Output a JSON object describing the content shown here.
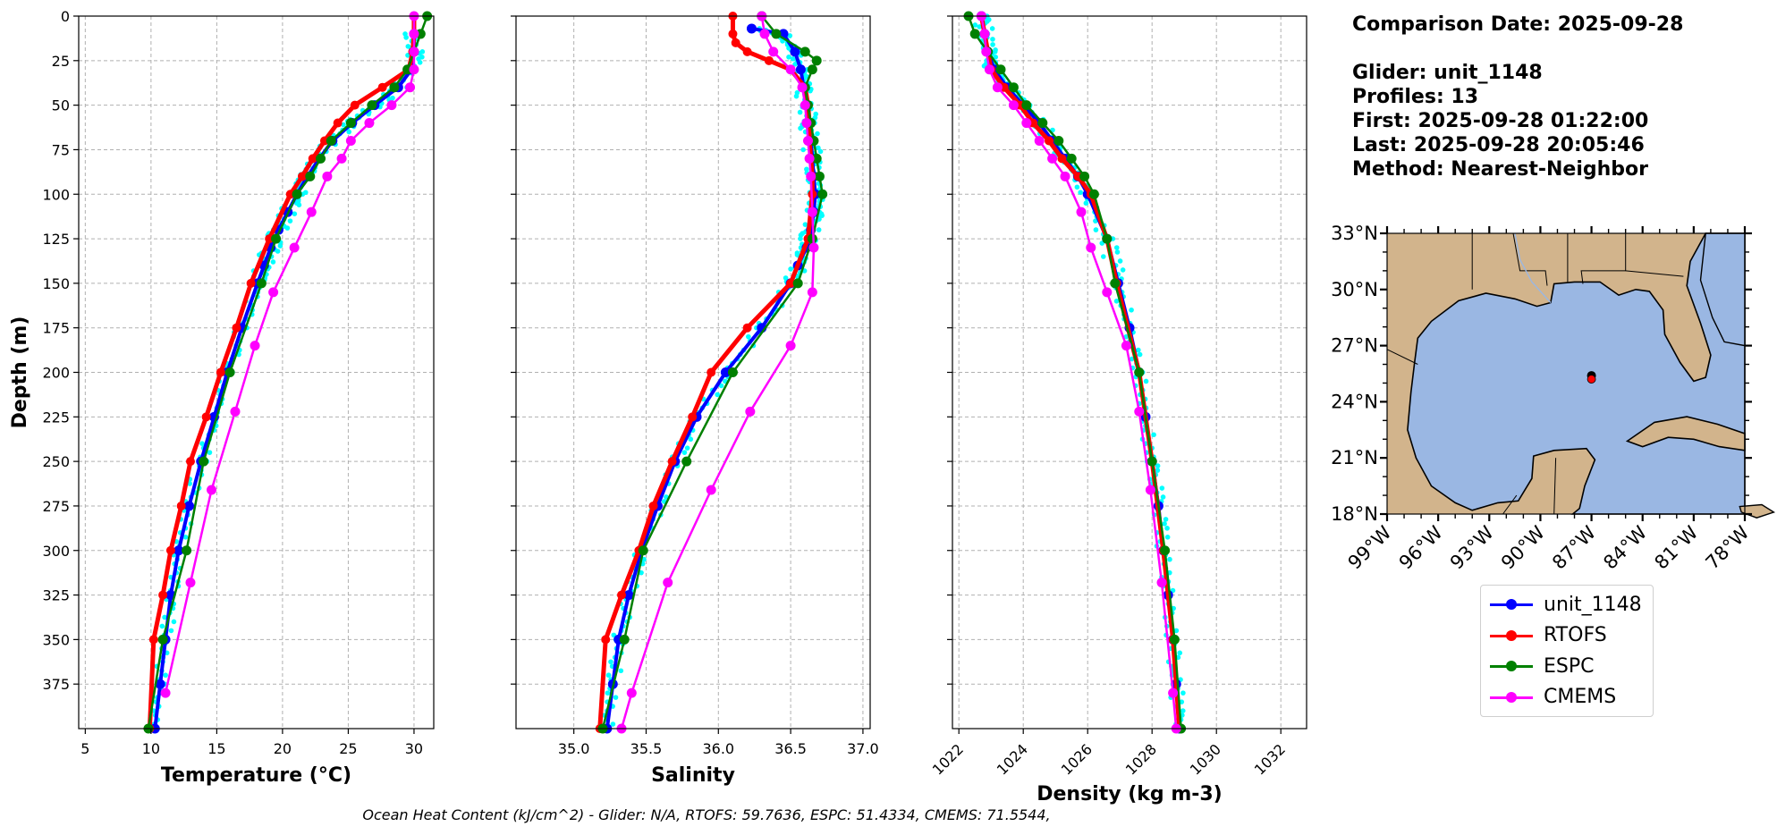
{
  "chart_data": [
    {
      "type": "line",
      "panel": "temperature",
      "xlabel": "Temperature (°C)",
      "ylabel": "Depth (m)",
      "xlim": [
        4.5,
        31.5
      ],
      "ylim": [
        400,
        0
      ],
      "xticks": [
        5,
        10,
        15,
        20,
        25,
        30
      ],
      "yticks": [
        0,
        25,
        50,
        75,
        100,
        125,
        150,
        175,
        200,
        225,
        250,
        275,
        300,
        325,
        350,
        375
      ],
      "grid": true,
      "scatter_points_color": "#00ffff",
      "series": [
        {
          "name": "unit_1148",
          "color": "#0000ff",
          "depth": [
            10,
            20,
            30,
            40,
            50,
            60,
            70,
            80,
            90,
            100,
            110,
            120,
            130,
            140,
            150,
            175,
            200,
            225,
            250,
            275,
            300,
            325,
            350,
            375,
            400
          ],
          "values": [
            30.0,
            30.0,
            29.8,
            28.8,
            27.0,
            25.3,
            23.8,
            22.8,
            21.9,
            21.1,
            20.4,
            19.7,
            19.1,
            18.6,
            18.1,
            16.9,
            15.8,
            14.8,
            13.8,
            12.9,
            12.1,
            11.5,
            11.1,
            10.7,
            10.3
          ]
        },
        {
          "name": "RTOFS",
          "color": "#ff0000",
          "depth": [
            0,
            10,
            20,
            30,
            40,
            50,
            60,
            70,
            80,
            90,
            100,
            125,
            150,
            175,
            200,
            225,
            250,
            275,
            300,
            325,
            350,
            400
          ],
          "values": [
            30.0,
            30.0,
            29.9,
            29.6,
            27.6,
            25.5,
            24.2,
            23.2,
            22.3,
            21.5,
            20.6,
            19.0,
            17.6,
            16.5,
            15.3,
            14.2,
            13.0,
            12.3,
            11.5,
            10.9,
            10.2,
            9.9
          ]
        },
        {
          "name": "ESPC",
          "color": "#008000",
          "depth": [
            0,
            10,
            20,
            30,
            40,
            50,
            60,
            70,
            80,
            90,
            100,
            125,
            150,
            200,
            250,
            300,
            350,
            400
          ],
          "values": [
            31.0,
            30.5,
            30.0,
            29.5,
            28.5,
            26.8,
            25.2,
            23.7,
            22.9,
            22.1,
            21.1,
            19.5,
            18.4,
            16.0,
            14.0,
            12.7,
            10.9,
            9.8
          ]
        },
        {
          "name": "CMEMS",
          "color": "#ff00ff",
          "depth": [
            0,
            10,
            20,
            30,
            40,
            50,
            60,
            70,
            80,
            90,
            110,
            130,
            155,
            185,
            222,
            266,
            318,
            380
          ],
          "values": [
            30.0,
            30.0,
            30.0,
            30.0,
            29.7,
            28.3,
            26.6,
            25.2,
            24.5,
            23.4,
            22.2,
            20.9,
            19.3,
            17.9,
            16.4,
            14.6,
            13.0,
            11.1
          ]
        }
      ]
    },
    {
      "type": "line",
      "panel": "salinity",
      "xlabel": "Salinity",
      "xlim": [
        34.6,
        37.05
      ],
      "ylim": [
        400,
        0
      ],
      "xticks": [
        "35.0",
        "35.5",
        "36.0",
        "36.5",
        "37.0"
      ],
      "grid": true,
      "series": [
        {
          "name": "unit_1148",
          "color": "#0000ff",
          "depth": [
            7,
            10,
            20,
            30,
            40,
            50,
            60,
            70,
            80,
            90,
            100,
            110,
            120,
            130,
            140,
            150,
            175,
            200,
            225,
            250,
            275,
            300,
            325,
            350,
            375,
            400
          ],
          "values": [
            36.23,
            36.45,
            36.53,
            36.57,
            36.59,
            36.61,
            36.62,
            36.64,
            36.65,
            36.66,
            36.67,
            36.66,
            36.64,
            36.61,
            36.55,
            36.5,
            36.3,
            36.05,
            35.85,
            35.7,
            35.58,
            35.47,
            35.38,
            35.31,
            35.27,
            35.23
          ]
        },
        {
          "name": "RTOFS",
          "color": "#ff0000",
          "depth": [
            0,
            10,
            15,
            20,
            25,
            30,
            40,
            50,
            60,
            70,
            80,
            90,
            100,
            125,
            150,
            175,
            200,
            225,
            250,
            275,
            300,
            325,
            350,
            400
          ],
          "values": [
            36.1,
            36.1,
            36.12,
            36.2,
            36.35,
            36.5,
            36.6,
            36.62,
            36.63,
            36.63,
            36.64,
            36.65,
            36.65,
            36.62,
            36.5,
            36.2,
            35.95,
            35.82,
            35.68,
            35.55,
            35.45,
            35.33,
            35.22,
            35.18
          ]
        },
        {
          "name": "ESPC",
          "color": "#008000",
          "depth": [
            0,
            10,
            20,
            25,
            30,
            40,
            50,
            60,
            70,
            80,
            90,
            100,
            125,
            150,
            200,
            250,
            300,
            350,
            400
          ],
          "values": [
            36.3,
            36.4,
            36.6,
            36.68,
            36.65,
            36.6,
            36.62,
            36.64,
            36.66,
            36.68,
            36.7,
            36.72,
            36.65,
            36.55,
            36.1,
            35.78,
            35.48,
            35.35,
            35.2
          ]
        },
        {
          "name": "CMEMS",
          "color": "#ff00ff",
          "depth": [
            0,
            10,
            20,
            30,
            40,
            50,
            60,
            70,
            80,
            90,
            110,
            130,
            155,
            185,
            222,
            266,
            318,
            380,
            400
          ],
          "values": [
            36.3,
            36.32,
            36.38,
            36.5,
            36.58,
            36.6,
            36.61,
            36.62,
            36.63,
            36.64,
            36.65,
            36.66,
            36.65,
            36.5,
            36.22,
            35.95,
            35.65,
            35.4,
            35.33
          ]
        }
      ]
    },
    {
      "type": "line",
      "panel": "density",
      "xlabel": "Density (kg m-3)",
      "xlim": [
        1021.8,
        1032.8
      ],
      "ylim": [
        400,
        0
      ],
      "xticks": [
        "1022",
        "1024",
        "1026",
        "1028",
        "1030",
        "1032"
      ],
      "grid": true,
      "series": [
        {
          "name": "unit_1148",
          "color": "#0000ff",
          "depth": [
            0,
            10,
            20,
            30,
            40,
            50,
            60,
            70,
            80,
            90,
            100,
            125,
            150,
            175,
            200,
            225,
            250,
            275,
            300,
            325,
            350,
            375,
            400
          ],
          "values": [
            1022.7,
            1022.8,
            1022.9,
            1023.1,
            1023.5,
            1024.0,
            1024.5,
            1024.9,
            1025.3,
            1025.7,
            1026.0,
            1026.6,
            1026.95,
            1027.3,
            1027.6,
            1027.8,
            1028.0,
            1028.2,
            1028.35,
            1028.5,
            1028.65,
            1028.75,
            1028.85
          ]
        },
        {
          "name": "RTOFS",
          "color": "#ff0000",
          "depth": [
            0,
            10,
            20,
            30,
            40,
            50,
            60,
            70,
            80,
            90,
            100,
            125,
            150,
            200,
            250,
            300,
            350,
            400
          ],
          "values": [
            1022.7,
            1022.8,
            1022.9,
            1023.0,
            1023.4,
            1023.9,
            1024.3,
            1024.8,
            1025.2,
            1025.7,
            1026.1,
            1026.6,
            1026.9,
            1027.6,
            1028.0,
            1028.35,
            1028.65,
            1028.85
          ]
        },
        {
          "name": "ESPC",
          "color": "#008000",
          "depth": [
            0,
            10,
            20,
            30,
            40,
            50,
            60,
            70,
            80,
            90,
            100,
            125,
            150,
            200,
            250,
            300,
            350,
            400
          ],
          "values": [
            1022.3,
            1022.5,
            1022.9,
            1023.3,
            1023.7,
            1024.1,
            1024.6,
            1025.1,
            1025.5,
            1025.9,
            1026.2,
            1026.6,
            1026.85,
            1027.6,
            1028.0,
            1028.4,
            1028.7,
            1028.9
          ]
        },
        {
          "name": "CMEMS",
          "color": "#ff00ff",
          "depth": [
            0,
            10,
            20,
            30,
            40,
            50,
            60,
            70,
            80,
            90,
            110,
            130,
            155,
            185,
            222,
            266,
            318,
            380,
            400
          ],
          "values": [
            1022.7,
            1022.8,
            1022.85,
            1022.95,
            1023.2,
            1023.7,
            1024.1,
            1024.5,
            1024.9,
            1025.3,
            1025.8,
            1026.1,
            1026.6,
            1027.2,
            1027.6,
            1027.95,
            1028.3,
            1028.65,
            1028.75
          ]
        }
      ]
    }
  ],
  "info": {
    "comparison_date": "Comparison Date: 2025-09-28",
    "glider": "Glider: unit_1148",
    "profiles": "Profiles: 13",
    "first": "First: 2025-09-28 01:22:00",
    "last": "Last: 2025-09-28 20:05:46",
    "method": "Method: Nearest-Neighbor"
  },
  "map": {
    "lat_ticks": [
      "33°N",
      "30°N",
      "27°N",
      "24°N",
      "21°N",
      "18°N"
    ],
    "lon_ticks": [
      "99°W",
      "96°W",
      "93°W",
      "90°W",
      "87°W",
      "84°W",
      "81°W",
      "78°W"
    ],
    "lon_range": [
      -99,
      -78
    ],
    "lat_range": [
      18,
      33
    ],
    "glider_position": {
      "lon": -87.0,
      "lat": 25.4
    },
    "land_color": "#d2b48c",
    "water_color": "#9ab7e3"
  },
  "legend": [
    {
      "label": "unit_1148",
      "color": "#0000ff"
    },
    {
      "label": "RTOFS",
      "color": "#ff0000"
    },
    {
      "label": "ESPC",
      "color": "#008000"
    },
    {
      "label": "CMEMS",
      "color": "#ff00ff"
    }
  ],
  "footer": "Ocean Heat Content (kJ/cm^2) - Glider: N/A,  RTOFS: 59.7636,  ESPC: 51.4334,  CMEMS: 71.5544,"
}
